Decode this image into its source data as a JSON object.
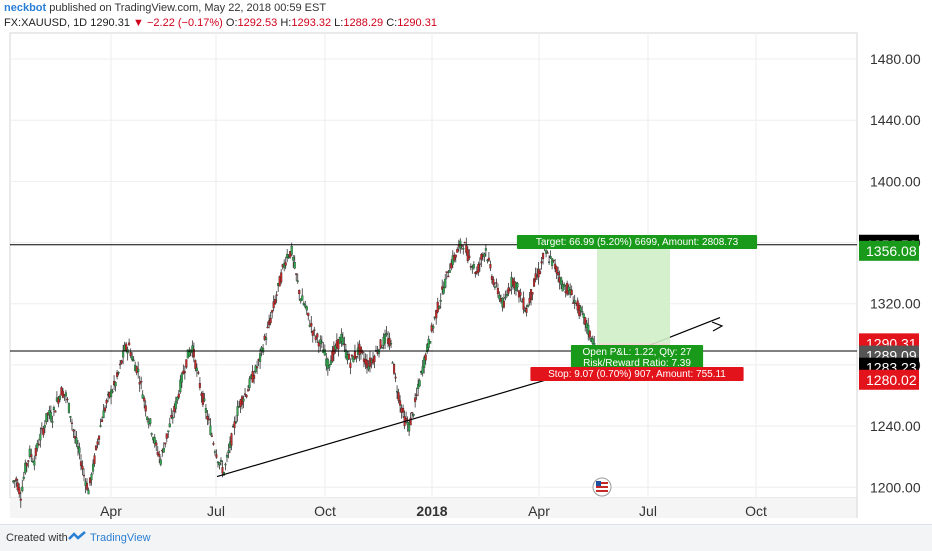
{
  "header": {
    "user": "neckbot",
    "published": " published on TradingView.com, May 22, 2018 00:59 EST",
    "symbol": "FX:XAUUSD, 1D",
    "last": "1290.31",
    "change": "−2.22 (−0.17%)",
    "o_label": "O:",
    "o_value": "1292.53",
    "h_label": "H:",
    "h_value": "1293.32",
    "l_label": "L:",
    "l_value": "1288.29",
    "c_label": "C:",
    "c_value": "1290.31"
  },
  "footer": {
    "created_with": "Created with",
    "brand": "TradingView"
  },
  "colors": {
    "up": "#26a69a",
    "up_fill": "#2fa84f",
    "down": "#c62828",
    "target": "#1a9a1a",
    "stop": "#e3131b",
    "zone": "#cfeec8"
  },
  "chart_data": {
    "type": "candlestick",
    "symbol": "FX:XAUUSD",
    "timeframe": "1D",
    "x_ticks": [
      "Apr",
      "Jul",
      "Oct",
      "2018",
      "Apr",
      "Jul",
      "Oct"
    ],
    "y_ticks": [
      "1200.00",
      "1240.00",
      "1280.00",
      "1320.00",
      "1360.00",
      "1400.00",
      "1440.00",
      "1480.00"
    ],
    "ylim": [
      1193,
      1497
    ],
    "price_tags": [
      {
        "label": "1358.56",
        "value": 1358.56,
        "color": "#000000"
      },
      {
        "label": "1356.08",
        "value": 1354.6,
        "color": "#1a9a1a"
      },
      {
        "label": "1290.31",
        "value": 1294.1,
        "color": "#e3131b"
      },
      {
        "label": "1289.09",
        "value": 1286.1,
        "color": "#555555"
      },
      {
        "label": "1283.23",
        "value": 1278.2,
        "color": "#000000"
      },
      {
        "label": "1280.02",
        "value": 1270.3,
        "color": "#e3131b"
      }
    ],
    "horizontal_lines": [
      1358.56,
      1289.09
    ],
    "trendline": {
      "from": {
        "t": 195,
        "p": 1207
      },
      "to": {
        "t": 330,
        "p": 1279
      }
    },
    "arrow": {
      "from": {
        "t": 440,
        "p": 1293
      },
      "to": {
        "t": 520,
        "p": 1311
      }
    },
    "position": {
      "target_label": "Target: 66.99 (5.20%) 6699, Amount: 2808.73",
      "pnl_label": "Open P&L: 1.22, Qty: 27",
      "rr_label": "Risk/Reward Ratio: 7.39",
      "stop_label": "Stop: 9.07 (0.70%) 907, Amount: 755.11",
      "entry": 1294,
      "target": 1356.08,
      "stop": 1280.02
    },
    "candles": [
      1205,
      1195,
      1212,
      1222,
      1218,
      1230,
      1238,
      1248,
      1246,
      1256,
      1263,
      1260,
      1248,
      1232,
      1222,
      1208,
      1198,
      1212,
      1230,
      1245,
      1255,
      1262,
      1268,
      1278,
      1290,
      1292,
      1282,
      1276,
      1262,
      1248,
      1238,
      1226,
      1218,
      1230,
      1240,
      1250,
      1262,
      1275,
      1286,
      1292,
      1276,
      1262,
      1250,
      1238,
      1226,
      1216,
      1210,
      1222,
      1236,
      1250,
      1258,
      1262,
      1270,
      1276,
      1284,
      1296,
      1306,
      1318,
      1330,
      1342,
      1352,
      1354,
      1338,
      1324,
      1318,
      1308,
      1300,
      1296,
      1290,
      1280,
      1286,
      1292,
      1298,
      1288,
      1282,
      1286,
      1290,
      1284,
      1280,
      1284,
      1290,
      1294,
      1298,
      1292,
      1270,
      1256,
      1244,
      1240,
      1250,
      1264,
      1278,
      1290,
      1302,
      1314,
      1324,
      1334,
      1344,
      1350,
      1356,
      1360,
      1352,
      1346,
      1340,
      1350,
      1356,
      1342,
      1332,
      1326,
      1318,
      1330,
      1336,
      1330,
      1322,
      1316,
      1326,
      1336,
      1342,
      1354,
      1350,
      1346,
      1340,
      1332,
      1330,
      1326,
      1320,
      1314,
      1308,
      1300,
      1294
    ]
  }
}
